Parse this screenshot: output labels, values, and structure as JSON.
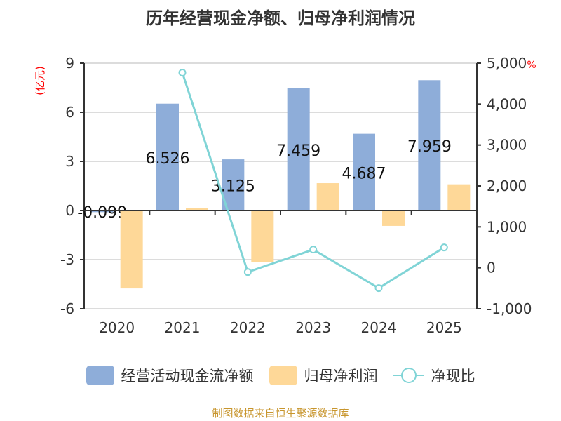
{
  "chart_data": {
    "type": "bar",
    "title": "历年经营现金净额、归母净利润情况",
    "categories": [
      "2020",
      "2021",
      "2022",
      "2023",
      "2024",
      "2025"
    ],
    "y_left": {
      "label": "(亿元)",
      "range": [
        -6,
        9
      ],
      "ticks": [
        -6,
        -3,
        0,
        3,
        6,
        9
      ]
    },
    "y_right": {
      "label": "%",
      "range": [
        -1000,
        5000
      ],
      "ticks": [
        -1000,
        0,
        1000,
        2000,
        3000,
        4000,
        5000
      ],
      "tick_labels": [
        "-1,000",
        "0",
        "1,000",
        "2,000",
        "3,000",
        "4,000",
        "5,000"
      ]
    },
    "grid": true,
    "legend_position": "bottom",
    "series": [
      {
        "name": "经营活动现金流净额",
        "type": "bar",
        "axis": "left",
        "color": "#8eadd9",
        "values": [
          -0.099,
          6.526,
          3.125,
          7.459,
          4.687,
          7.959
        ],
        "labels": [
          "-0.099",
          "6.526",
          "3.125",
          "7.459",
          "4.687",
          "7.959"
        ]
      },
      {
        "name": "归母净利润",
        "type": "bar",
        "axis": "left",
        "color": "#fed898",
        "values": [
          -4.76,
          0.13,
          -3.17,
          1.67,
          -0.94,
          1.6
        ]
      },
      {
        "name": "净现比",
        "type": "line",
        "axis": "right",
        "color": "#80d4d6",
        "values": [
          null,
          4768,
          -103,
          446,
          -497,
          497
        ]
      }
    ]
  },
  "source": "制图数据来自恒生聚源数据库"
}
